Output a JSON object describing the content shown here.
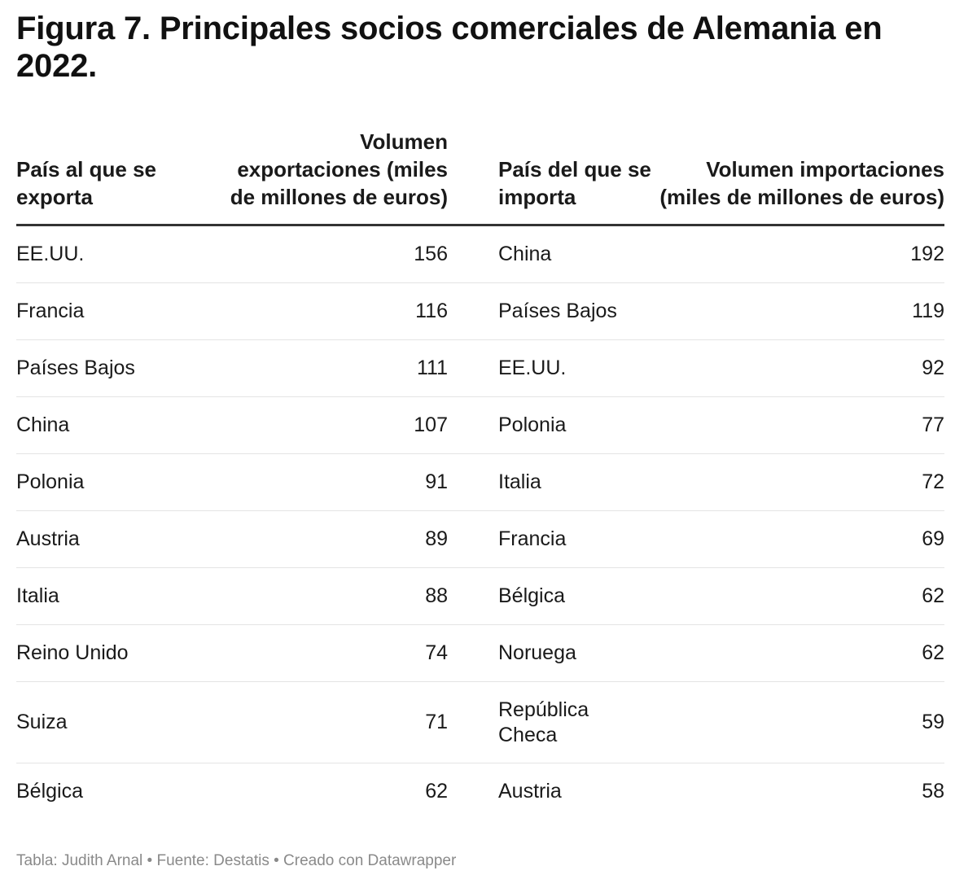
{
  "title": "Figura 7. Principales socios comerciales de Alemania en 2022.",
  "footer": "Tabla: Judith Arnal • Fuente: Destatis • Creado con Datawrapper",
  "chart_data": {
    "type": "table",
    "columns": [
      "País al que se exporta",
      "Volumen exportaciones (miles de millones de euros)",
      "País del que se importa",
      "Volumen importaciones (miles de millones de euros)"
    ],
    "rows": [
      [
        "EE.UU.",
        156,
        "China",
        192
      ],
      [
        "Francia",
        116,
        "Países Bajos",
        119
      ],
      [
        "Países Bajos",
        111,
        "EE.UU.",
        92
      ],
      [
        "China",
        107,
        "Polonia",
        77
      ],
      [
        "Polonia",
        91,
        "Italia",
        72
      ],
      [
        "Austria",
        89,
        "Francia",
        69
      ],
      [
        "Italia",
        88,
        "Bélgica",
        62
      ],
      [
        "Reino Unido",
        74,
        "Noruega",
        62
      ],
      [
        "Suiza",
        71,
        "República Checa",
        59
      ],
      [
        "Bélgica",
        62,
        "Austria",
        58
      ]
    ]
  }
}
